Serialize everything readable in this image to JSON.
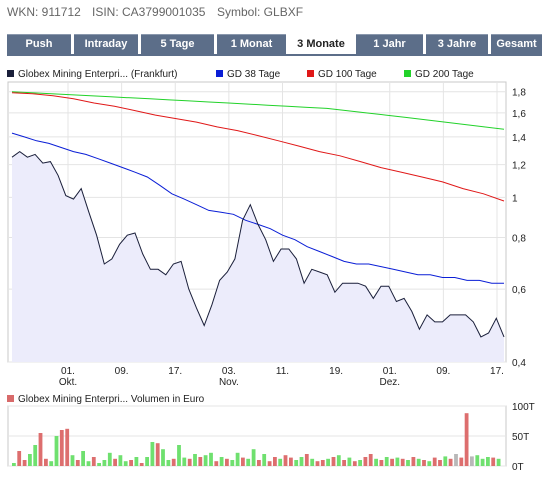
{
  "header": {
    "wkn": "WKN: 911712",
    "isin": "ISIN: CA3799001035",
    "symbol": "Symbol: GLBXF"
  },
  "tabs": [
    {
      "label": "Push",
      "active": false
    },
    {
      "label": "Intraday",
      "active": false
    },
    {
      "label": "5 Tage",
      "active": false
    },
    {
      "label": "1 Monat",
      "active": false
    },
    {
      "label": "3 Monate",
      "active": true
    },
    {
      "label": "1 Jahr",
      "active": false
    },
    {
      "label": "3 Jahre",
      "active": false
    },
    {
      "label": "Gesamt",
      "active": false
    }
  ],
  "price_legend": [
    {
      "label": "Globex Mining Enterpri... (Frankfurt)",
      "color": "#1a1f3a"
    },
    {
      "label": "GD 38 Tage",
      "color": "#0a1ed6"
    },
    {
      "label": "GD 100 Tage",
      "color": "#e01818"
    },
    {
      "label": "GD 200 Tage",
      "color": "#22d22a"
    }
  ],
  "volume_legend": {
    "label": "Globex Mining Enterpri... Volumen in Euro",
    "color": "#d86a6a"
  },
  "chart_data": [
    {
      "type": "line",
      "yscale": "log",
      "ylim": [
        0.4,
        1.9
      ],
      "yticks": [
        "1,8",
        "1,6",
        "1,4",
        "1,2",
        "1",
        "0,8",
        "0,6",
        "0,4"
      ],
      "xticks": [
        {
          "top": "01.",
          "bottom": "Okt."
        },
        {
          "top": "09.",
          "bottom": ""
        },
        {
          "top": "17.",
          "bottom": ""
        },
        {
          "top": "03.",
          "bottom": "Nov."
        },
        {
          "top": "11.",
          "bottom": ""
        },
        {
          "top": "19.",
          "bottom": ""
        },
        {
          "top": "01.",
          "bottom": "Dez."
        },
        {
          "top": "09.",
          "bottom": ""
        },
        {
          "top": "17.",
          "bottom": ""
        }
      ],
      "series": [
        {
          "name": "Globex Mining Enterpri... (Frankfurt)",
          "color": "#1a1f3a",
          "fill": "#ececfb",
          "values": [
            1.25,
            1.29,
            1.25,
            1.27,
            1.21,
            1.22,
            1.13,
            1.01,
            0.99,
            1.05,
            0.92,
            0.81,
            0.69,
            0.71,
            0.77,
            0.81,
            0.82,
            0.73,
            0.67,
            0.67,
            0.65,
            0.69,
            0.7,
            0.6,
            0.54,
            0.49,
            0.55,
            0.63,
            0.66,
            0.71,
            0.88,
            0.96,
            0.86,
            0.79,
            0.7,
            0.75,
            0.75,
            0.71,
            0.62,
            0.67,
            0.66,
            0.65,
            0.59,
            0.62,
            0.62,
            0.62,
            0.61,
            0.57,
            0.61,
            0.61,
            0.56,
            0.57,
            0.53,
            0.48,
            0.52,
            0.5,
            0.5,
            0.52,
            0.52,
            0.52,
            0.5,
            0.46,
            0.47,
            0.51,
            0.46
          ]
        },
        {
          "name": "GD 38 Tage",
          "color": "#0a1ed6",
          "values": [
            1.43,
            1.4,
            1.37,
            1.35,
            1.32,
            1.29,
            1.27,
            1.24,
            1.21,
            1.18,
            1.15,
            1.12,
            1.07,
            1.02,
            0.99,
            0.96,
            0.93,
            0.92,
            0.91,
            0.88,
            0.86,
            0.84,
            0.81,
            0.79,
            0.76,
            0.74,
            0.72,
            0.7,
            0.69,
            0.69,
            0.68,
            0.67,
            0.66,
            0.65,
            0.65,
            0.64,
            0.64,
            0.63,
            0.63,
            0.62,
            0.62
          ]
        },
        {
          "name": "GD 100 Tage",
          "color": "#e01818",
          "values": [
            1.79,
            1.78,
            1.76,
            1.73,
            1.69,
            1.66,
            1.62,
            1.58,
            1.55,
            1.52,
            1.48,
            1.45,
            1.41,
            1.37,
            1.33,
            1.29,
            1.26,
            1.22,
            1.18,
            1.15,
            1.12,
            1.09,
            1.05,
            1.02,
            0.98
          ]
        },
        {
          "name": "GD 200 Tage",
          "color": "#22d22a",
          "values": [
            1.8,
            1.79,
            1.78,
            1.77,
            1.76,
            1.75,
            1.74,
            1.73,
            1.72,
            1.71,
            1.7,
            1.69,
            1.68,
            1.67,
            1.66,
            1.65,
            1.64,
            1.62,
            1.6,
            1.58,
            1.56,
            1.54,
            1.52,
            1.5,
            1.48,
            1.46
          ]
        }
      ]
    },
    {
      "type": "bar",
      "ylim": [
        0,
        100
      ],
      "yticks": [
        "100T",
        "50T",
        "0T"
      ],
      "colors": {
        "up": "#6fe06f",
        "down": "#dd6e6e",
        "neutral": "#b8b8b8"
      },
      "values": [
        5,
        25,
        10,
        20,
        35,
        55,
        12,
        8,
        50,
        60,
        62,
        18,
        10,
        25,
        8,
        15,
        5,
        10,
        22,
        12,
        18,
        8,
        10,
        15,
        5,
        15,
        40,
        38,
        28,
        10,
        12,
        35,
        14,
        12,
        20,
        15,
        18,
        22,
        8,
        15,
        12,
        10,
        22,
        14,
        12,
        28,
        10,
        20,
        8,
        15,
        12,
        18,
        14,
        10,
        15,
        20,
        12,
        8,
        10,
        12,
        15,
        18,
        10,
        14,
        8,
        10,
        15,
        20,
        12,
        10,
        15,
        12,
        14,
        12,
        10,
        15,
        12,
        10,
        8,
        14,
        10,
        16,
        12,
        20,
        14,
        88,
        16,
        18,
        12,
        15,
        14,
        12
      ],
      "color_keys": [
        "up",
        "down",
        "down",
        "up",
        "up",
        "down",
        "down",
        "up",
        "up",
        "down",
        "down",
        "up",
        "down",
        "up",
        "up",
        "down",
        "up",
        "up",
        "up",
        "down",
        "up",
        "up",
        "down",
        "up",
        "down",
        "up",
        "up",
        "down",
        "up",
        "up",
        "down",
        "up",
        "up",
        "down",
        "up",
        "down",
        "up",
        "up",
        "down",
        "up",
        "down",
        "up",
        "up",
        "down",
        "up",
        "up",
        "down",
        "up",
        "down",
        "down",
        "up",
        "down",
        "down",
        "up",
        "up",
        "down",
        "up",
        "down",
        "down",
        "up",
        "down",
        "up",
        "down",
        "up",
        "down",
        "up",
        "down",
        "down",
        "up",
        "down",
        "up",
        "down",
        "up",
        "down",
        "up",
        "down",
        "up",
        "down",
        "up",
        "down",
        "down",
        "up",
        "down",
        "neutral",
        "down",
        "down",
        "neutral",
        "up",
        "up",
        "up",
        "down",
        "up"
      ]
    }
  ]
}
